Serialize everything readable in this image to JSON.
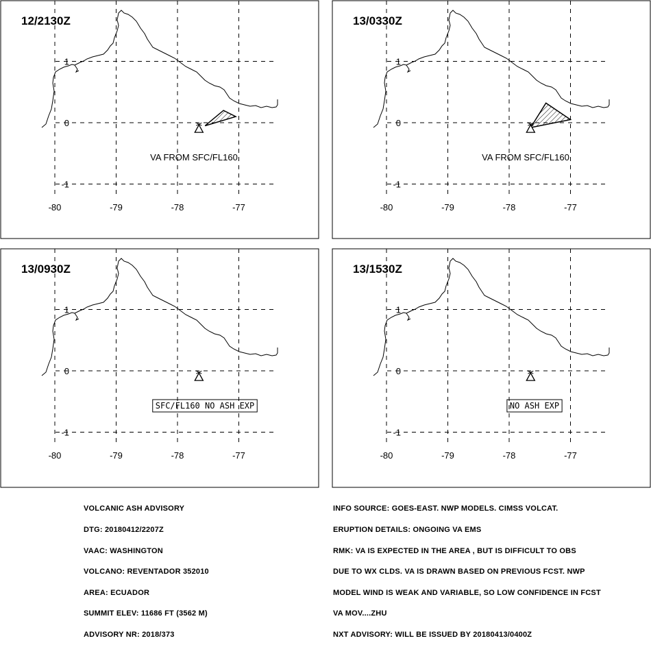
{
  "panels": [
    {
      "time": "12/2130Z",
      "annotation": {
        "style": "plain",
        "text": "VA FROM SFC/FL160"
      },
      "ash_polygon": [
        [
          -77.55,
          -0.05
        ],
        [
          -77.05,
          0.1
        ],
        [
          -77.25,
          0.2
        ]
      ]
    },
    {
      "time": "13/0330Z",
      "annotation": {
        "style": "plain",
        "text": "VA FROM SFC/FL160"
      },
      "ash_polygon": [
        [
          -77.65,
          -0.08
        ],
        [
          -77.0,
          0.05
        ],
        [
          -77.4,
          0.32
        ]
      ]
    },
    {
      "time": "13/0930Z",
      "annotation": {
        "style": "boxed",
        "text": "SFC/FL160 NO ASH EXP"
      },
      "ash_polygon": null
    },
    {
      "time": "13/1530Z",
      "annotation": {
        "style": "boxed",
        "text": "NO ASH EXP"
      },
      "ash_polygon": null
    }
  ],
  "axes": {
    "lon_ticks": [
      "-80",
      "-79",
      "-78",
      "-77"
    ],
    "lat_ticks": [
      "1",
      "0",
      "-1"
    ],
    "lon_values": [
      -80,
      -79,
      -78,
      -77
    ],
    "lat_values": [
      1,
      0,
      -1
    ]
  },
  "volcano": {
    "name": "REVENTADOR",
    "lon": -77.65,
    "lat": -0.08
  },
  "advisory_left": [
    "VOLCANIC ASH ADVISORY",
    "DTG: 20180412/2207Z",
    "VAAC: WASHINGTON",
    "VOLCANO: REVENTADOR 352010",
    "AREA: ECUADOR",
    "SUMMIT ELEV: 11686 FT (3562 M)",
    "ADVISORY NR: 2018/373"
  ],
  "advisory_right": [
    "INFO SOURCE: GOES-EAST. NWP MODELS. CIMSS VOLCAT.",
    "ERUPTION DETAILS: ONGOING VA EMS",
    "RMK: VA IS EXPECTED IN THE AREA , BUT IS DIFFICULT TO OBS",
    "DUE TO WX CLDS. VA IS DRAWN BASED ON PREVIOUS FCST. NWP",
    "MODEL WIND IS WEAK AND VARIABLE, SO LOW CONFIDENCE IN FCST",
    "VA MOV....ZHU",
    "NXT ADVISORY: WILL BE ISSUED BY 20180413/0400Z"
  ]
}
